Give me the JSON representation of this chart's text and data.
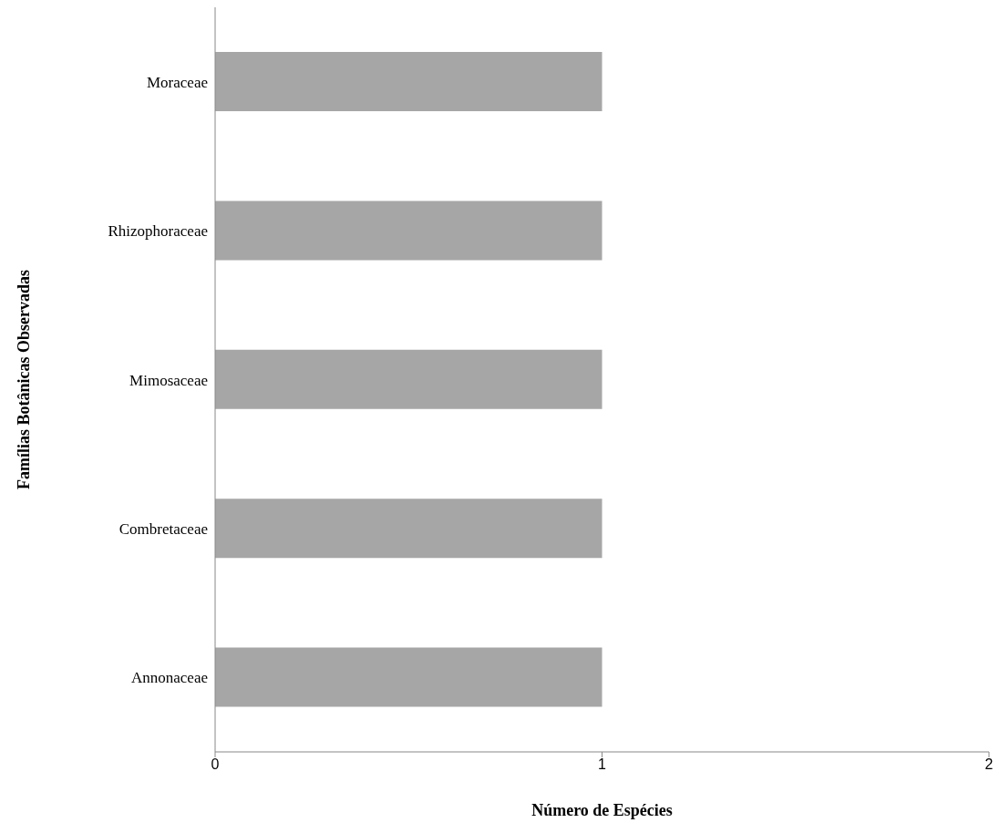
{
  "chart_data": {
    "type": "bar",
    "orientation": "horizontal",
    "xlabel": "Número de Espécies",
    "ylabel": "Famílias Botânicas Observadas",
    "categories": [
      "Moraceae",
      "Rhizophoraceae",
      "Mimosaceae",
      "Combretaceae",
      "Annonaceae"
    ],
    "values": [
      1,
      1,
      1,
      1,
      1
    ],
    "color": "#a6a6a6",
    "xlim": [
      0,
      2
    ],
    "xticks": [
      0,
      1,
      2
    ],
    "grid": false
  }
}
